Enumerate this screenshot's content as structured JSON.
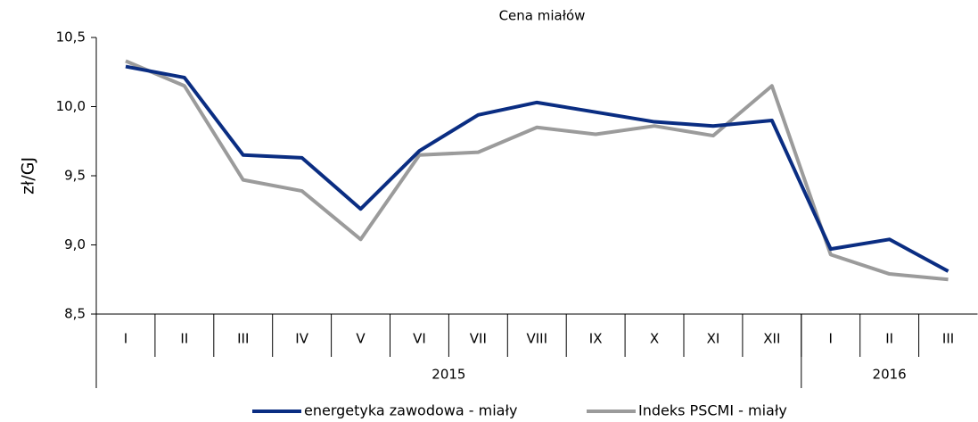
{
  "chart_data": {
    "type": "line",
    "title": "Cena miałów",
    "ylabel": "zł/GJ",
    "categories": [
      "I",
      "II",
      "III",
      "IV",
      "V",
      "VI",
      "VII",
      "VIII",
      "IX",
      "X",
      "XI",
      "XII",
      "I",
      "II",
      "III"
    ],
    "year_groups": [
      {
        "label": "2015",
        "span": 12
      },
      {
        "label": "2016",
        "span": 3
      }
    ],
    "series": [
      {
        "name": "energetyka zawodowa - miały",
        "color": "#0a2d82",
        "values": [
          10.29,
          10.21,
          9.65,
          9.63,
          9.26,
          9.68,
          9.94,
          10.03,
          9.96,
          9.89,
          9.86,
          9.9,
          8.97,
          9.04,
          8.81
        ]
      },
      {
        "name": "Indeks PSCMI - miały",
        "color": "#9b9b9b",
        "values": [
          10.33,
          10.15,
          9.47,
          9.39,
          9.04,
          9.65,
          9.67,
          9.85,
          9.8,
          9.86,
          9.79,
          10.15,
          8.93,
          8.79,
          8.75
        ]
      }
    ],
    "ylim": [
      8.5,
      10.5
    ],
    "yticks": [
      {
        "value": 8.5,
        "label": "8,5"
      },
      {
        "value": 9.0,
        "label": "9,0"
      },
      {
        "value": 9.5,
        "label": "9,5"
      },
      {
        "value": 10.0,
        "label": "10,0"
      },
      {
        "value": 10.5,
        "label": "10,5"
      }
    ],
    "legend": "bottom"
  }
}
